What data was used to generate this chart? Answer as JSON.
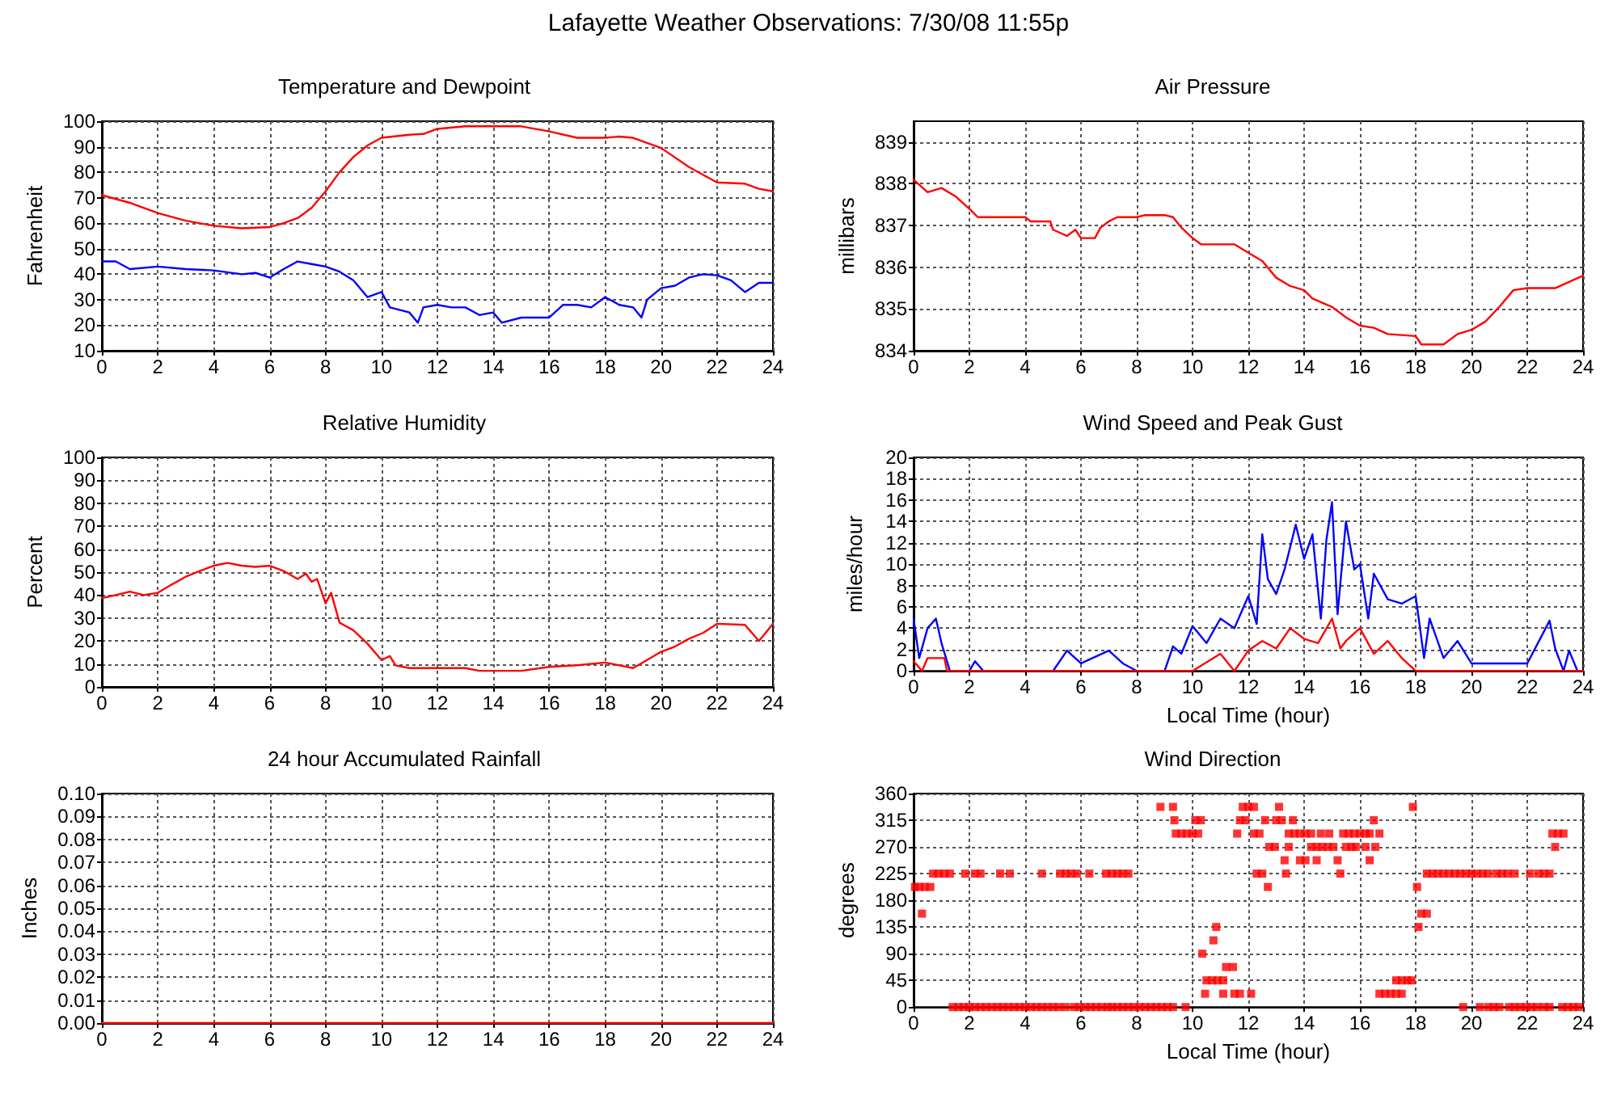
{
  "chart_data": [
    {
      "type": "line",
      "title": "Temperature and Dewpoint",
      "ylabel": "Fahrenheit",
      "annotations": [
        "Lafayette Weather Observations: 7/30/08 11:55p"
      ],
      "xlim": [
        0,
        24
      ],
      "xticks": [
        0,
        2,
        4,
        6,
        8,
        10,
        12,
        14,
        16,
        18,
        20,
        22,
        24
      ],
      "ylim": [
        10,
        100
      ],
      "yticks": [
        10,
        20,
        30,
        40,
        50,
        60,
        70,
        80,
        90,
        100
      ],
      "grid": true,
      "series": [
        {
          "color": "#ff0000",
          "x": [
            0,
            1,
            2,
            3,
            4,
            5,
            6,
            6.5,
            7,
            7.5,
            8,
            8.5,
            9,
            9.5,
            10,
            11,
            11.5,
            12,
            13,
            14,
            15,
            16,
            17,
            18,
            18.5,
            19,
            20,
            21,
            22,
            23,
            23.5,
            24
          ],
          "values": [
            71,
            68,
            64,
            61,
            59,
            58,
            58.5,
            60,
            62,
            66,
            72.5,
            80,
            86,
            90.5,
            93.5,
            94.7,
            95,
            97,
            98,
            98,
            98,
            96,
            93.5,
            93.5,
            94,
            93.5,
            89.5,
            82,
            76,
            75.5,
            73.5,
            72.5
          ]
        },
        {
          "color": "#0000ff",
          "x": [
            0,
            0.5,
            1,
            2,
            3,
            4,
            5,
            5.5,
            6,
            6.5,
            7,
            7.5,
            8,
            8.5,
            9,
            9.5,
            10,
            10.3,
            11,
            11.3,
            11.5,
            12,
            12.5,
            13,
            13.5,
            14,
            14.3,
            15,
            16,
            16.5,
            17,
            17.5,
            18,
            18.5,
            19,
            19.3,
            19.5,
            20,
            20.5,
            21,
            21.5,
            22,
            22.5,
            23,
            23.5,
            24
          ],
          "values": [
            45,
            45,
            42,
            43,
            42,
            41.5,
            40,
            40.5,
            38.7,
            42,
            45,
            44,
            43,
            41,
            37.6,
            31,
            33,
            27,
            25,
            21,
            27,
            28,
            27,
            27,
            24,
            25,
            21,
            23,
            23,
            28,
            28,
            27,
            31,
            28,
            27,
            23,
            30,
            34.5,
            35.5,
            38.7,
            40,
            39.6,
            37.6,
            33,
            36.6,
            36.6
          ]
        }
      ]
    },
    {
      "type": "line",
      "title": "Air Pressure",
      "ylabel": "millibars",
      "xlim": [
        0,
        24
      ],
      "xticks": [
        0,
        2,
        4,
        6,
        8,
        10,
        12,
        14,
        16,
        18,
        20,
        22,
        24
      ],
      "ylim": [
        834,
        839.5
      ],
      "yticks": [
        834,
        835,
        836,
        837,
        838,
        839
      ],
      "grid": true,
      "series": [
        {
          "color": "#ff0000",
          "x": [
            0,
            0.5,
            1,
            1.5,
            2,
            2.3,
            4,
            4.2,
            4.9,
            5,
            5.5,
            5.8,
            6,
            6.5,
            6.7,
            7,
            7.3,
            8,
            8.3,
            9,
            9.3,
            9.6,
            10,
            10.3,
            11.5,
            12,
            12.5,
            13,
            13.5,
            14,
            14.3,
            15,
            15.5,
            16,
            16.5,
            17,
            18,
            18.2,
            19,
            19.5,
            20,
            20.5,
            21,
            21.5,
            22,
            23,
            23.5,
            24
          ],
          "values": [
            838.1,
            837.8,
            837.9,
            837.7,
            837.4,
            837.2,
            837.2,
            837.1,
            837.1,
            836.9,
            836.75,
            836.9,
            836.7,
            836.7,
            836.95,
            837.1,
            837.2,
            837.2,
            837.25,
            837.25,
            837.2,
            836.95,
            836.7,
            836.55,
            836.55,
            836.35,
            836.15,
            835.75,
            835.55,
            835.45,
            835.25,
            835.05,
            834.8,
            834.6,
            834.55,
            834.4,
            834.35,
            834.15,
            834.15,
            834.4,
            834.5,
            834.7,
            835.05,
            835.45,
            835.5,
            835.5,
            835.65,
            835.8
          ]
        }
      ]
    },
    {
      "type": "line",
      "title": "Relative Humidity",
      "ylabel": "Percent",
      "xlim": [
        0,
        24
      ],
      "xticks": [
        0,
        2,
        4,
        6,
        8,
        10,
        12,
        14,
        16,
        18,
        20,
        22,
        24
      ],
      "ylim": [
        0,
        100
      ],
      "yticks": [
        0,
        10,
        20,
        30,
        40,
        50,
        60,
        70,
        80,
        90,
        100
      ],
      "grid": true,
      "series": [
        {
          "color": "#ff0000",
          "x": [
            0,
            0.5,
            1,
            1.5,
            2,
            2.5,
            3,
            3.5,
            4,
            4.5,
            5,
            5.5,
            6,
            6.5,
            7,
            7.3,
            7.5,
            7.7,
            8,
            8.2,
            8.5,
            9,
            9.5,
            10,
            10.3,
            10.5,
            11,
            12,
            13,
            13.5,
            14,
            15,
            16,
            17,
            18,
            18.5,
            19,
            19.5,
            20,
            20.5,
            21,
            21.5,
            22,
            23,
            23.5,
            24
          ],
          "values": [
            38.7,
            40,
            41.5,
            40,
            41,
            44.6,
            48,
            50.5,
            52.8,
            54,
            52.8,
            52.3,
            52.8,
            50.5,
            47,
            49.3,
            45.8,
            47,
            36.4,
            41,
            28,
            24.6,
            18.8,
            11.7,
            13.4,
            9.4,
            8.2,
            8.2,
            8.2,
            7,
            7,
            7,
            8.7,
            9.4,
            10.6,
            9.4,
            8.2,
            11.7,
            15.3,
            17.6,
            21,
            23.5,
            27.5,
            27,
            20,
            27.5
          ]
        }
      ]
    },
    {
      "type": "line",
      "title": "Wind Speed and Peak Gust",
      "ylabel": "miles/hour",
      "xlabel": "Local Time (hour)",
      "xlim": [
        0,
        24
      ],
      "xticks": [
        0,
        2,
        4,
        6,
        8,
        10,
        12,
        14,
        16,
        18,
        20,
        22,
        24
      ],
      "ylim": [
        0,
        20
      ],
      "yticks": [
        0,
        2,
        4,
        6,
        8,
        10,
        12,
        14,
        16,
        18,
        20
      ],
      "grid": true,
      "series": [
        {
          "color": "#0000ff",
          "x": [
            0,
            0.2,
            0.5,
            0.8,
            1,
            1.3,
            2,
            2.2,
            2.5,
            4,
            5,
            5.5,
            6,
            7,
            7.5,
            8,
            9,
            9.3,
            9.6,
            10,
            10.5,
            11,
            11.5,
            12,
            12.3,
            12.5,
            12.7,
            13,
            13.3,
            13.7,
            14,
            14.3,
            14.6,
            14.8,
            15,
            15.2,
            15.5,
            15.8,
            16,
            16.3,
            16.5,
            17,
            17.5,
            18,
            18.3,
            18.5,
            19,
            19.5,
            20,
            21,
            22,
            22.8,
            23,
            23.3,
            23.5,
            23.8,
            24
          ],
          "values": [
            4.9,
            1.2,
            4,
            4.9,
            2.6,
            0,
            0,
            0.9,
            0,
            0,
            0,
            1.9,
            0.7,
            1.9,
            0.7,
            0,
            0,
            2.3,
            1.6,
            4.2,
            2.6,
            4.9,
            4,
            7,
            4.4,
            12.8,
            8.6,
            7.2,
            9.5,
            13.7,
            10.5,
            12.8,
            4.9,
            12.3,
            15.8,
            5.3,
            14,
            9.5,
            10,
            4.9,
            9.1,
            6.7,
            6.3,
            7,
            1.2,
            4.9,
            1.2,
            2.8,
            0.7,
            0.7,
            0.7,
            4.7,
            2.1,
            0,
            1.9,
            0,
            0
          ]
        },
        {
          "color": "#ff0000",
          "x": [
            0,
            0.3,
            0.5,
            1.1,
            1.2,
            10,
            11,
            11.5,
            12,
            12.5,
            13,
            13.5,
            14,
            14.5,
            15,
            15.3,
            15.5,
            16,
            16.5,
            17,
            17.5,
            18,
            24
          ],
          "values": [
            0.9,
            0,
            1.2,
            1.2,
            0,
            0,
            1.6,
            0,
            1.9,
            2.8,
            2.1,
            4,
            3,
            2.6,
            4.9,
            2.1,
            2.8,
            4,
            1.6,
            2.8,
            1.2,
            0,
            0
          ]
        }
      ]
    },
    {
      "type": "line",
      "title": "24 hour Accumulated Rainfall",
      "ylabel": "Inches",
      "xlim": [
        0,
        24
      ],
      "xticks": [
        0,
        2,
        4,
        6,
        8,
        10,
        12,
        14,
        16,
        18,
        20,
        22,
        24
      ],
      "ylim": [
        0,
        0.1
      ],
      "yticks": [
        {
          "value": 0,
          "label": "0.00"
        },
        {
          "value": 0.01,
          "label": "0.01"
        },
        {
          "value": 0.02,
          "label": "0.02"
        },
        {
          "value": 0.03,
          "label": "0.03"
        },
        {
          "value": 0.04,
          "label": "0.04"
        },
        {
          "value": 0.05,
          "label": "0.05"
        },
        {
          "value": 0.06,
          "label": "0.06"
        },
        {
          "value": 0.07,
          "label": "0.07"
        },
        {
          "value": 0.08,
          "label": "0.08"
        },
        {
          "value": 0.09,
          "label": "0.09"
        },
        {
          "value": 0.1,
          "label": "0.10"
        }
      ],
      "grid": true,
      "series": [
        {
          "color": "#ff0000",
          "x": [
            0,
            24
          ],
          "values": [
            0,
            0
          ]
        }
      ]
    },
    {
      "type": "scatter",
      "title": "Wind Direction",
      "ylabel": "degrees",
      "xlabel": "Local Time (hour)",
      "marker": "square",
      "xlim": [
        0,
        24
      ],
      "xticks": [
        0,
        2,
        4,
        6,
        8,
        10,
        12,
        14,
        16,
        18,
        20,
        22,
        24
      ],
      "ylim": [
        0,
        360
      ],
      "yticks": [
        0,
        45,
        90,
        135,
        180,
        225,
        270,
        315,
        360
      ],
      "grid": true,
      "series": [
        {
          "color": "#ff0000",
          "x": [
            8.85,
            9.3,
            11.8,
            12.0,
            12.2,
            13.1,
            17.9,
            9.35,
            10.1,
            10.3,
            11.7,
            11.9,
            12.6,
            13.0,
            13.2,
            13.6,
            16.5,
            9.4,
            9.6,
            9.8,
            10.0,
            10.2,
            11.6,
            12.2,
            12.4,
            13.45,
            13.65,
            13.85,
            14.05,
            14.25,
            14.6,
            14.9,
            15.4,
            15.6,
            15.8,
            16.0,
            16.2,
            16.35,
            16.7,
            22.9,
            23.1,
            23.3,
            12.75,
            12.95,
            13.45,
            14.25,
            14.45,
            14.65,
            14.85,
            15.05,
            15.5,
            15.7,
            15.85,
            16.2,
            16.55,
            23.0,
            13.3,
            13.85,
            14.05,
            14.45,
            15.2,
            16.35,
            0.7,
            0.9,
            1.1,
            1.3,
            1.85,
            2.2,
            2.4,
            3.1,
            3.45,
            4.6,
            5.25,
            5.45,
            5.65,
            5.85,
            6.3,
            6.9,
            7.1,
            7.3,
            7.5,
            7.7,
            12.3,
            12.5,
            13.35,
            15.3,
            18.4,
            18.6,
            18.8,
            19.0,
            19.2,
            19.4,
            19.6,
            19.8,
            20.0,
            20.2,
            20.4,
            20.6,
            20.9,
            21.1,
            21.3,
            21.55,
            22.1,
            22.4,
            22.6,
            22.8,
            0.05,
            0.2,
            0.4,
            0.6,
            12.7,
            18.05,
            0.3,
            18.2,
            18.4,
            10.85,
            18.1,
            10.75,
            10.35,
            11.2,
            11.45,
            10.5,
            10.7,
            10.9,
            11.1,
            17.3,
            17.5,
            17.7,
            17.85,
            10.45,
            11.1,
            11.5,
            11.7,
            12.1,
            16.7,
            16.9,
            17.1,
            17.3,
            17.5,
            1.4,
            1.6,
            1.8,
            2.0,
            2.2,
            2.4,
            2.6,
            2.8,
            3.0,
            3.2,
            3.4,
            3.6,
            3.8,
            4.0,
            4.2,
            4.4,
            4.6,
            4.8,
            5.0,
            5.2,
            5.45,
            5.75,
            5.95,
            6.15,
            6.35,
            6.55,
            6.75,
            6.95,
            7.1,
            7.3,
            7.5,
            7.7,
            7.9,
            8.1,
            8.3,
            8.5,
            8.7,
            8.9,
            9.1,
            9.3,
            9.75,
            19.7,
            20.3,
            20.6,
            20.8,
            21.0,
            21.35,
            21.55,
            21.75,
            21.95,
            22.15,
            22.35,
            22.6,
            22.8,
            23.25,
            23.45,
            23.65,
            23.85
          ],
          "values": [
            337.5,
            337.5,
            337.5,
            337.5,
            337.5,
            337.5,
            337.5,
            315,
            315,
            315,
            315,
            315,
            315,
            315,
            315,
            315,
            315,
            292.5,
            292.5,
            292.5,
            292.5,
            292.5,
            292.5,
            292.5,
            292.5,
            292.5,
            292.5,
            292.5,
            292.5,
            292.5,
            292.5,
            292.5,
            292.5,
            292.5,
            292.5,
            292.5,
            292.5,
            292.5,
            292.5,
            292.5,
            292.5,
            292.5,
            270,
            270,
            270,
            270,
            270,
            270,
            270,
            270,
            270,
            270,
            270,
            270,
            270,
            270,
            247.5,
            247.5,
            247.5,
            247.5,
            247.5,
            247.5,
            225,
            225,
            225,
            225,
            225,
            225,
            225,
            225,
            225,
            225,
            225,
            225,
            225,
            225,
            225,
            225,
            225,
            225,
            225,
            225,
            225,
            225,
            225,
            225,
            225,
            225,
            225,
            225,
            225,
            225,
            225,
            225,
            225,
            225,
            225,
            225,
            225,
            225,
            225,
            225,
            225,
            225,
            225,
            225,
            202.5,
            202.5,
            202.5,
            202.5,
            202.5,
            202.5,
            157.5,
            157.5,
            157.5,
            135,
            135,
            112.5,
            90,
            67.5,
            67.5,
            45,
            45,
            45,
            45,
            45,
            45,
            45,
            45,
            22.5,
            22.5,
            22.5,
            22.5,
            22.5,
            22.5,
            22.5,
            22.5,
            22.5,
            22.5,
            0,
            0,
            0,
            0,
            0,
            0,
            0,
            0,
            0,
            0,
            0,
            0,
            0,
            0,
            0,
            0,
            0,
            0,
            0,
            0,
            0,
            0,
            0,
            0,
            0,
            0,
            0,
            0,
            0,
            0,
            0,
            0,
            0,
            0,
            0,
            0,
            0,
            0,
            0,
            0,
            0,
            0,
            0,
            0,
            0,
            0,
            0,
            0,
            0,
            0,
            0,
            0,
            0,
            0,
            0,
            0,
            0,
            0
          ]
        }
      ]
    }
  ]
}
